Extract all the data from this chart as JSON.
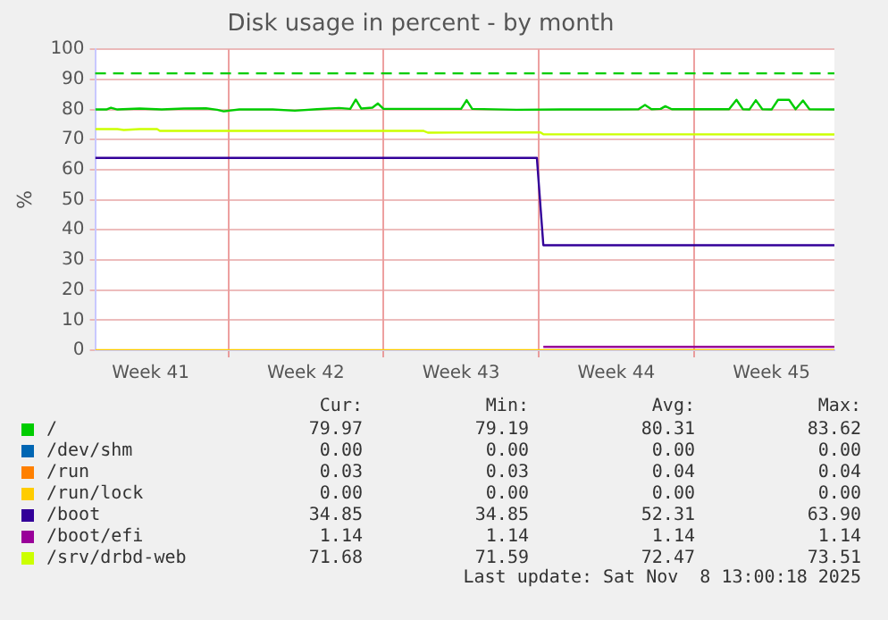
{
  "chart_data": {
    "type": "line",
    "title": "Disk usage in percent - by month",
    "ylabel": "%",
    "xlim": [
      "2025-10-07T00:00",
      "2025-11-09T08:00"
    ],
    "xticks": [
      {
        "value": "2025-10-09T12:00",
        "label": "Week 41"
      },
      {
        "value": "2025-10-13",
        "label": null
      },
      {
        "value": "2025-10-16T12:00",
        "label": "Week 42"
      },
      {
        "value": "2025-10-20",
        "label": null
      },
      {
        "value": "2025-10-23T12:00",
        "label": "Week 43"
      },
      {
        "value": "2025-10-27",
        "label": null
      },
      {
        "value": "2025-10-30T12:00",
        "label": "Week 44"
      },
      {
        "value": "2025-11-03",
        "label": null
      },
      {
        "value": "2025-11-06T12:00",
        "label": "Week 45"
      }
    ],
    "ylim": [
      0,
      100
    ],
    "yticks": [
      0,
      10,
      20,
      30,
      40,
      50,
      60,
      70,
      80,
      90,
      100
    ],
    "grid": true,
    "legend": "bottom left",
    "ref_lines": [
      {
        "axis": "y",
        "value": 92,
        "color": "#00cc00",
        "line_style": "dashed"
      }
    ],
    "series": [
      {
        "name": "/",
        "color": "#00cc00",
        "x": [
          "2025-10-07T00:00",
          "2025-10-07T12:00",
          "2025-10-07T17:00",
          "2025-10-08T00:00",
          "2025-10-09T00:00",
          "2025-10-10T00:00",
          "2025-10-11T00:00",
          "2025-10-12T00:00",
          "2025-10-12T12:00",
          "2025-10-12T19:00",
          "2025-10-13T12:00",
          "2025-10-15T00:00",
          "2025-10-16T00:00",
          "2025-10-17T00:00",
          "2025-10-18T00:00",
          "2025-10-18T12:00",
          "2025-10-18T18:00",
          "2025-10-19T00:00",
          "2025-10-19T12:00",
          "2025-10-19T18:00",
          "2025-10-20T00:00",
          "2025-10-22T00:00",
          "2025-10-23T12:00",
          "2025-10-23T18:00",
          "2025-10-24T00:00",
          "2025-10-26T00:00",
          "2025-10-28T00:00",
          "2025-10-30T00:00",
          "2025-10-31T12:00",
          "2025-10-31T19:00",
          "2025-11-01T02:00",
          "2025-11-01T12:00",
          "2025-11-01T17:00",
          "2025-11-02T00:00",
          "2025-11-04T14:00",
          "2025-11-04T22:00",
          "2025-11-05T05:00",
          "2025-11-05T12:00",
          "2025-11-05T19:00",
          "2025-11-06T02:00",
          "2025-11-06T12:00",
          "2025-11-06T19:00",
          "2025-11-07T07:00",
          "2025-11-07T14:00",
          "2025-11-07T22:00",
          "2025-11-08T05:00",
          "2025-11-09T08:00"
        ],
        "values": [
          80,
          80,
          80.6,
          80,
          80.3,
          80,
          80.3,
          80.4,
          79.9,
          79.4,
          80,
          80,
          79.6,
          80.1,
          80.5,
          80.2,
          83.3,
          80.3,
          80.6,
          82,
          80.2,
          80.2,
          80.2,
          83.1,
          80.2,
          79.9,
          80,
          80,
          80.1,
          81.5,
          80.1,
          80.2,
          81.1,
          80.1,
          80.1,
          83.2,
          80.1,
          80,
          83.1,
          80.1,
          80,
          83.2,
          83.2,
          80.1,
          83,
          80.1,
          80
        ]
      },
      {
        "name": "/dev/shm",
        "color": "#0066b3"
      },
      {
        "name": "/run",
        "color": "#ff8000"
      },
      {
        "name": "/run/lock",
        "color": "#ffcc00",
        "x": [
          "2025-10-07T00:00",
          "2025-11-09T08:00"
        ],
        "values": [
          0,
          0
        ]
      },
      {
        "name": "/boot",
        "color": "#330099",
        "x": [
          "2025-10-07T00:00",
          "2025-10-26T22:00",
          "2025-10-27T05:00",
          "2025-11-09T08:00"
        ],
        "values": [
          63.9,
          63.9,
          34.9,
          34.9
        ]
      },
      {
        "name": "/boot/efi",
        "color": "#990099",
        "x": [
          "2025-10-27T05:00",
          "2025-11-09T08:00"
        ],
        "values": [
          1.1,
          1.1
        ]
      },
      {
        "name": "/srv/drbd-web",
        "color": "#ccff00",
        "x": [
          "2025-10-07T00:00",
          "2025-10-08T00:00",
          "2025-10-08T07:00",
          "2025-10-09T00:00",
          "2025-10-09T19:00",
          "2025-10-09T22:00",
          "2025-10-21T19:00",
          "2025-10-22T00:00",
          "2025-10-27T02:00",
          "2025-10-27T05:00",
          "2025-11-09T08:00"
        ],
        "values": [
          73.5,
          73.5,
          73.2,
          73.5,
          73.5,
          72.9,
          72.9,
          72.3,
          72.4,
          71.8,
          71.7
        ]
      }
    ],
    "annotations": [
      "Cur:",
      "Min:",
      "Avg:",
      "Max:",
      "79.97",
      "79.19",
      "80.31",
      "83.62",
      "0.00",
      "0.00",
      "0.00",
      "0.00",
      "0.03",
      "0.03",
      "0.04",
      "0.04",
      "0.00",
      "0.00",
      "0.00",
      "0.00",
      "34.85",
      "34.85",
      "52.31",
      "63.90",
      "1.14",
      "1.14",
      "1.14",
      "1.14",
      "71.68",
      "71.59",
      "72.47",
      "73.51",
      "Last update: Sat Nov  8 13:00:18 2025"
    ]
  }
}
